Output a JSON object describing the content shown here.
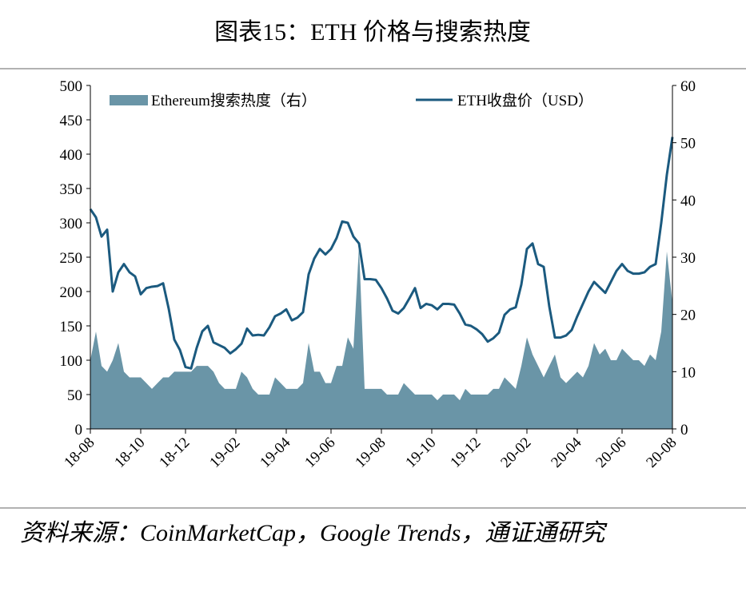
{
  "chart_data": {
    "type": "line_area",
    "title": "图表15：ETH 价格与搜索热度",
    "source": "资料来源：CoinMarketCap，Google Trends，通证通研究",
    "categories": [
      "18-08",
      null,
      null,
      null,
      null,
      null,
      null,
      null,
      null,
      "18-10",
      null,
      null,
      null,
      null,
      null,
      null,
      null,
      "18-12",
      null,
      null,
      null,
      null,
      null,
      null,
      null,
      null,
      "19-02",
      null,
      null,
      null,
      null,
      null,
      null,
      null,
      null,
      "19-04",
      null,
      null,
      null,
      null,
      null,
      null,
      null,
      "19-06",
      null,
      null,
      null,
      null,
      null,
      null,
      null,
      null,
      "19-08",
      null,
      null,
      null,
      null,
      null,
      null,
      null,
      null,
      "19-10",
      null,
      null,
      null,
      null,
      null,
      null,
      null,
      "19-12",
      null,
      null,
      null,
      null,
      null,
      null,
      null,
      null,
      "20-02",
      null,
      null,
      null,
      null,
      null,
      null,
      null,
      null,
      "20-04",
      null,
      null,
      null,
      null,
      null,
      null,
      null,
      "20-06",
      null,
      null,
      null,
      null,
      null,
      null,
      null,
      null,
      "20-08"
    ],
    "series": [
      {
        "name": "Ethereum搜索热度（右）",
        "color": "#6a95a7",
        "kind": "area",
        "axis": "y2",
        "values": [
          12,
          17,
          11,
          10,
          12,
          15,
          10,
          9,
          9,
          9,
          8,
          7,
          8,
          9,
          9,
          10,
          10,
          10,
          10,
          11,
          11,
          11,
          10,
          8,
          7,
          7,
          7,
          10,
          9,
          7,
          6,
          6,
          6,
          9,
          8,
          7,
          7,
          7,
          8,
          15,
          10,
          10,
          8,
          8,
          11,
          11,
          16,
          14,
          32,
          7,
          7,
          7,
          7,
          6,
          6,
          6,
          8,
          7,
          6,
          6,
          6,
          6,
          5,
          6,
          6,
          6,
          5,
          7,
          6,
          6,
          6,
          6,
          7,
          7,
          9,
          8,
          7,
          11,
          16,
          13,
          11,
          9,
          11,
          13,
          9,
          8,
          9,
          10,
          9,
          11,
          15,
          13,
          14,
          12,
          12,
          14,
          13,
          12,
          12,
          11,
          13,
          12,
          17,
          31,
          22
        ]
      },
      {
        "name": "ETH收盘价（USD）",
        "color": "#1b5a7f",
        "kind": "line",
        "values": [
          320,
          308,
          280,
          290,
          200,
          228,
          240,
          228,
          222,
          196,
          205,
          207,
          208,
          212,
          175,
          130,
          115,
          90,
          88,
          118,
          142,
          150,
          126,
          122,
          118,
          110,
          116,
          124,
          146,
          136,
          137,
          136,
          148,
          164,
          168,
          174,
          158,
          162,
          170,
          225,
          248,
          262,
          254,
          262,
          278,
          302,
          300,
          280,
          270,
          218,
          218,
          217,
          205,
          190,
          172,
          168,
          176,
          190,
          205,
          176,
          182,
          180,
          174,
          182,
          182,
          181,
          168,
          152,
          150,
          145,
          138,
          127,
          132,
          140,
          166,
          174,
          177,
          210,
          262,
          270,
          240,
          236,
          178,
          133,
          133,
          136,
          144,
          164,
          182,
          200,
          214,
          206,
          198,
          214,
          230,
          240,
          230,
          226,
          226,
          228,
          236,
          240,
          300,
          370,
          425
        ]
      }
    ],
    "ylim": [
      0,
      500
    ],
    "yticks": [
      0,
      50,
      100,
      150,
      200,
      250,
      300,
      350,
      400,
      450,
      500
    ],
    "y2lim": [
      0,
      60
    ],
    "y2ticks": [
      0,
      10,
      20,
      30,
      40,
      50,
      60
    ],
    "grid": false,
    "legend": "top"
  }
}
